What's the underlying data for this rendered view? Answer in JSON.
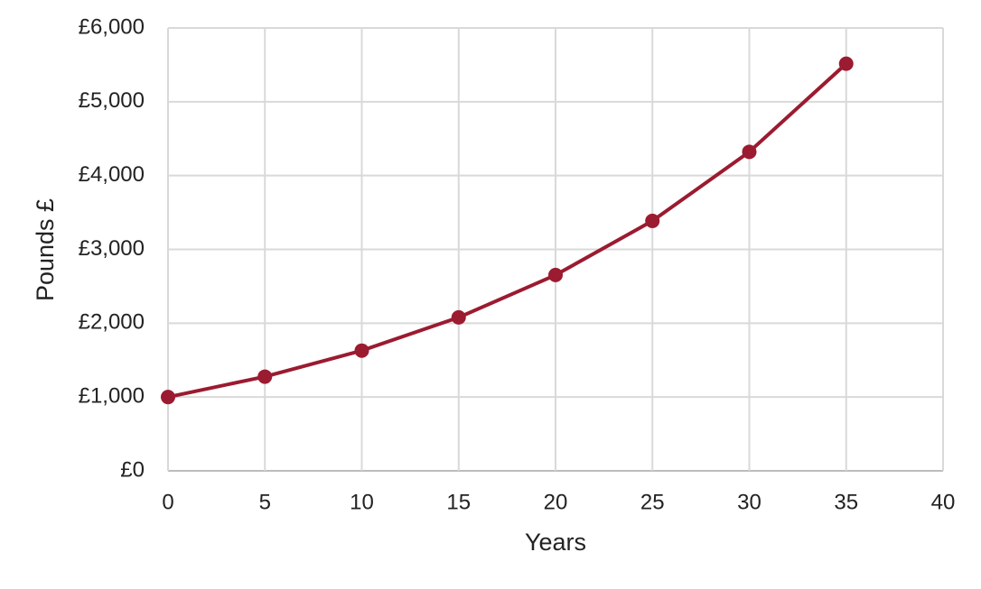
{
  "chart_data": {
    "type": "line",
    "x_label": "Years",
    "y_label": "Pounds £",
    "series": [
      {
        "name": "Pounds",
        "color": "#9b1b30",
        "x": [
          0,
          5,
          10,
          15,
          20,
          25,
          30,
          35
        ],
        "values": [
          1000,
          1276,
          1629,
          2079,
          2653,
          3386,
          4322,
          5516
        ]
      }
    ],
    "xlim": [
      0,
      40
    ],
    "xticks": [
      0,
      5,
      10,
      15,
      20,
      25,
      30,
      35,
      40
    ],
    "ylim": [
      0,
      6000
    ],
    "yticks": [
      {
        "value": 0,
        "label": "£0"
      },
      {
        "value": 1000,
        "label": "£1,000"
      },
      {
        "value": 2000,
        "label": "£2,000"
      },
      {
        "value": 3000,
        "label": "£3,000"
      },
      {
        "value": 4000,
        "label": "£4,000"
      },
      {
        "value": 5000,
        "label": "£5,000"
      },
      {
        "value": 6000,
        "label": "£6,000"
      }
    ],
    "grid": true
  }
}
